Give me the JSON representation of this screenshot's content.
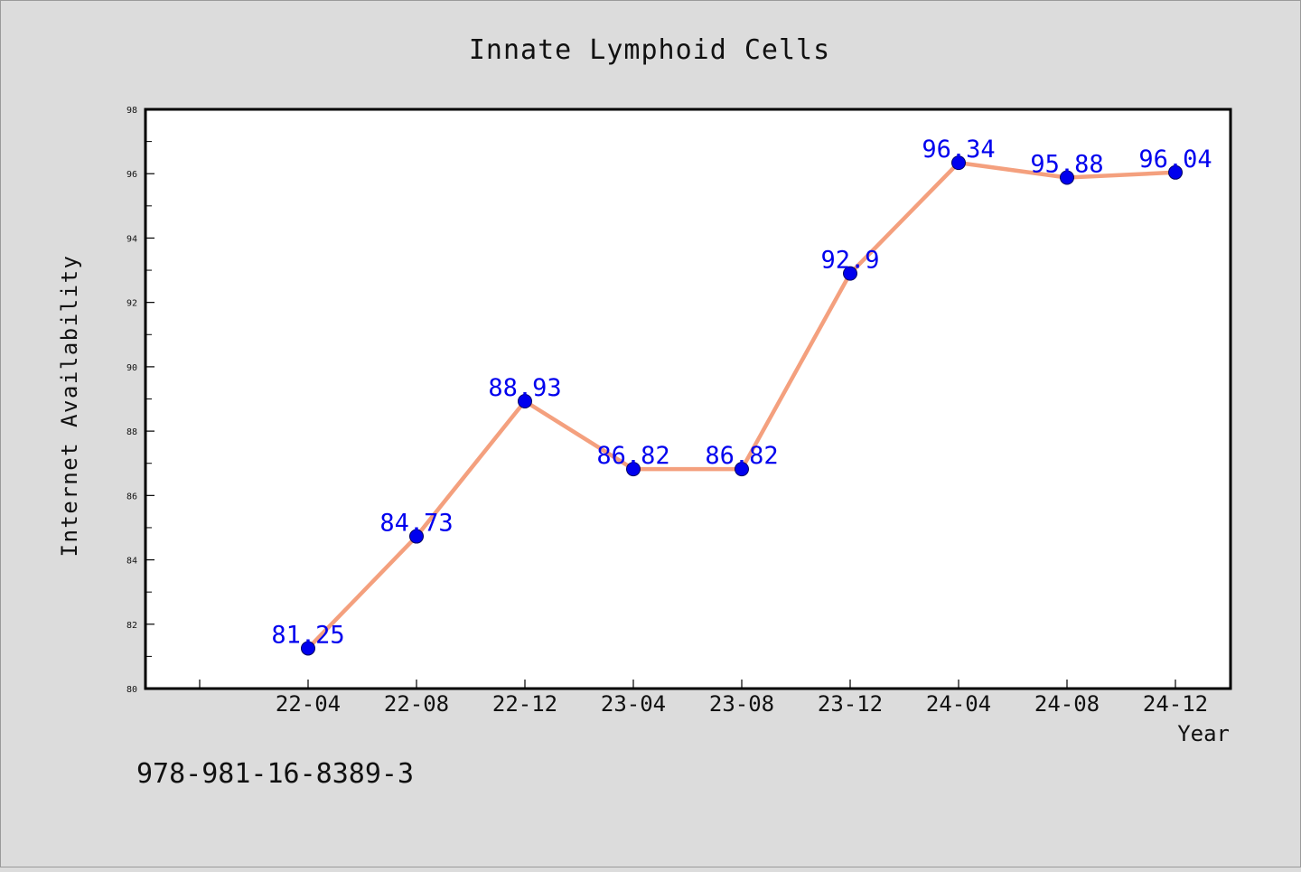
{
  "chart_data": {
    "type": "line",
    "title": "Innate Lymphoid Cells",
    "xlabel": "Year",
    "ylabel": "Internet Availability",
    "categories": [
      "22-04",
      "22-08",
      "22-12",
      "23-04",
      "23-08",
      "23-12",
      "24-04",
      "24-08",
      "24-12"
    ],
    "series": [
      {
        "values": [
          81.25,
          84.73,
          88.93,
          86.82,
          86.82,
          92.9,
          96.34,
          95.88,
          96.04
        ],
        "data_labels": [
          "81.25",
          "84.73",
          "88.93",
          "86.82",
          "86.82",
          "92.9",
          "96.34",
          "95.88",
          "96.04"
        ],
        "line_color": "#f4a07e",
        "marker_color": "#0000ee",
        "label_color": "#0000ee"
      }
    ],
    "ylim": [
      80,
      98
    ],
    "yticks": [
      "80",
      "82",
      "84",
      "86",
      "88",
      "90",
      "92",
      "94",
      "96",
      "98"
    ],
    "grid": false,
    "legend": "none"
  },
  "footer": {
    "isbn": "978-981-16-8389-3"
  },
  "colors": {
    "background": "#dcdcdc",
    "plot_background": "#ffffff",
    "axis": "#000000"
  }
}
